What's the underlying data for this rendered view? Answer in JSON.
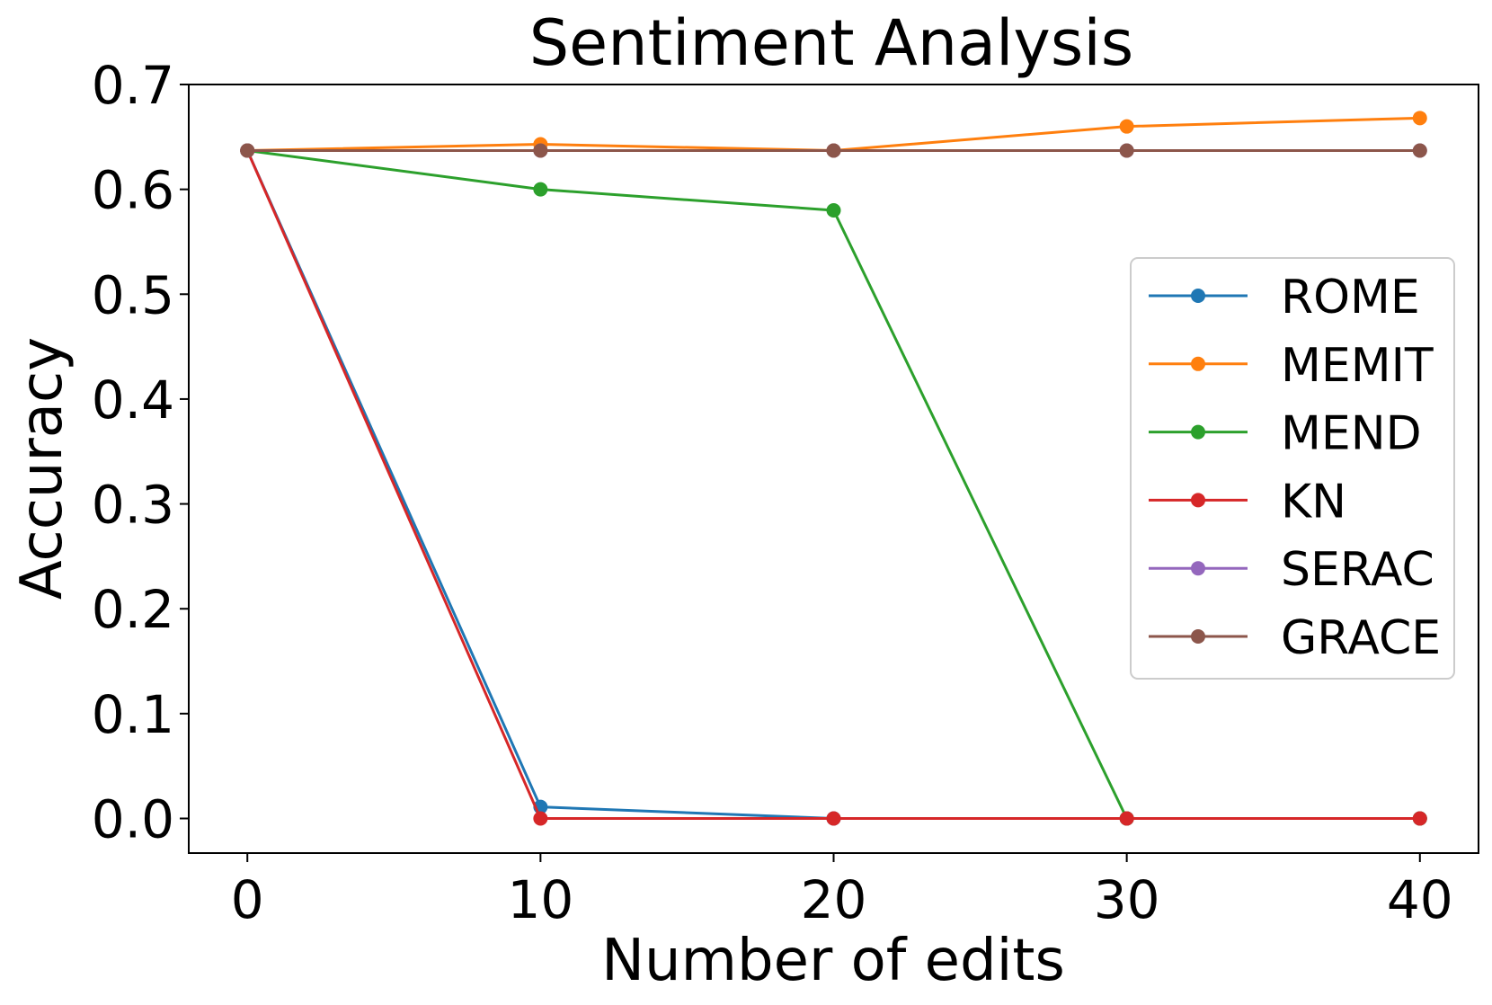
{
  "chart_data": {
    "type": "line",
    "title": "Sentiment Analysis",
    "xlabel": "Number of edits",
    "ylabel": "Accuracy",
    "x": [
      0,
      10,
      20,
      30,
      40
    ],
    "xticks": [
      "0",
      "10",
      "20",
      "30",
      "40"
    ],
    "yticks": [
      "0.0",
      "0.1",
      "0.2",
      "0.3",
      "0.4",
      "0.5",
      "0.6",
      "0.7"
    ],
    "xlim": [
      -2,
      42
    ],
    "ylim": [
      -0.033,
      0.7
    ],
    "grid": false,
    "legend_position": "center-right",
    "series": [
      {
        "name": "ROME",
        "color": "#1f77b4",
        "values": [
          0.637,
          0.011,
          0.0,
          0.0,
          0.0
        ]
      },
      {
        "name": "MEMIT",
        "color": "#ff7f0e",
        "values": [
          0.637,
          0.643,
          0.637,
          0.66,
          0.668
        ]
      },
      {
        "name": "MEND",
        "color": "#2ca02c",
        "values": [
          0.637,
          0.6,
          0.58,
          0.0,
          0.0
        ]
      },
      {
        "name": "KN",
        "color": "#d62728",
        "values": [
          0.637,
          0.0,
          0.0,
          0.0,
          0.0
        ]
      },
      {
        "name": "SERAC",
        "color": "#9467bd",
        "values": [
          0.637,
          0.637,
          0.637,
          0.637,
          0.637
        ]
      },
      {
        "name": "GRACE",
        "color": "#8c564b",
        "values": [
          0.637,
          0.637,
          0.637,
          0.637,
          0.637
        ]
      }
    ]
  }
}
